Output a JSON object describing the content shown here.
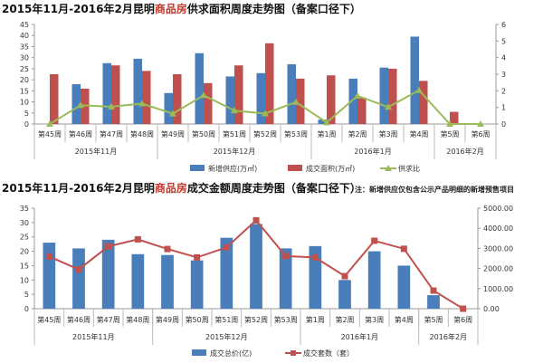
{
  "colors": {
    "supply": "#4a7ebb",
    "sales": "#c0504d",
    "ratio": "#9bbb59",
    "amount": "#4a7ebb",
    "units": "#c0504d",
    "highlight": "#c0392b"
  },
  "chart_data": [
    {
      "type": "bar+line",
      "title_parts": [
        "2015年11月-2016年2月昆明",
        "商品房",
        "供求面积周度走势图（备案口径下）"
      ],
      "categories": [
        "第45周",
        "第46周",
        "第47周",
        "第48周",
        "第49周",
        "第50周",
        "第51周",
        "第52周",
        "第53周",
        "第1周",
        "第2周",
        "第3周",
        "第4周",
        "第5周",
        "第6周"
      ],
      "groups": [
        {
          "label": "2015年11月",
          "count": 4
        },
        {
          "label": "2015年12月",
          "count": 5
        },
        {
          "label": "2016年1月",
          "count": 4
        },
        {
          "label": "2016年2月",
          "count": 2
        }
      ],
      "ylim": [
        0,
        45
      ],
      "yticks": [
        0,
        5,
        10,
        15,
        20,
        25,
        30,
        35,
        40,
        45
      ],
      "y2lim": [
        0,
        6
      ],
      "y2ticks": [
        0,
        1,
        2,
        3,
        4,
        5,
        6
      ],
      "series": [
        {
          "name": "新增供应(万㎡)",
          "kind": "bar",
          "axis": "left",
          "color_key": "supply",
          "values": [
            0,
            18,
            27.5,
            29.5,
            14,
            32,
            21.5,
            23,
            27,
            2,
            20.5,
            25.5,
            39.5,
            0,
            0
          ]
        },
        {
          "name": "成交面积(万㎡)",
          "kind": "bar",
          "axis": "left",
          "color_key": "sales",
          "values": [
            22.5,
            16,
            26.5,
            24,
            22.5,
            18.5,
            26.5,
            36.5,
            20.5,
            22,
            12,
            25,
            19.5,
            5.5,
            0
          ]
        },
        {
          "name": "供求比",
          "kind": "line",
          "marker": "triangle",
          "axis": "right",
          "color_key": "ratio",
          "values": [
            0,
            1.13,
            1.04,
            1.23,
            0.62,
            1.73,
            0.81,
            0.63,
            1.32,
            0.09,
            1.7,
            1.02,
            2.03,
            0,
            0
          ]
        }
      ],
      "legend": "bottom"
    },
    {
      "type": "bar+line",
      "title_parts": [
        "2015年11月-2016年2月昆明",
        "商品房",
        "成交金额周度走势图（备案口径下）"
      ],
      "note": "注：新增供应仅包含公示产品明细的新增预售项目",
      "categories": [
        "第45周",
        "第46周",
        "第47周",
        "第48周",
        "第49周",
        "第50周",
        "第51周",
        "第52周",
        "第53周",
        "第1周",
        "第2周",
        "第3周",
        "第4周",
        "第5周",
        "第6周"
      ],
      "groups": [
        {
          "label": "2015年11月",
          "count": 4
        },
        {
          "label": "2015年12月",
          "count": 5
        },
        {
          "label": "2016年1月",
          "count": 4
        },
        {
          "label": "2016年2月",
          "count": 2
        }
      ],
      "ylim": [
        0,
        35
      ],
      "yticks": [
        0,
        5,
        10,
        15,
        20,
        25,
        30,
        35
      ],
      "y2lim": [
        0,
        5000
      ],
      "y2ticks": [
        "0.00",
        "1000.00",
        "2000.00",
        "3000.00",
        "4000.00",
        "5000.00"
      ],
      "series": [
        {
          "name": "成交总价(亿)",
          "kind": "bar",
          "axis": "left",
          "color_key": "amount",
          "values": [
            23,
            21,
            24,
            19,
            18.7,
            16.8,
            24.7,
            29.5,
            21,
            21.8,
            10,
            20,
            15,
            4.7,
            0
          ]
        },
        {
          "name": "成交套数（套）",
          "kind": "line",
          "marker": "square",
          "axis": "right",
          "color_key": "units",
          "values": [
            2600,
            1950,
            3100,
            3450,
            2970,
            2550,
            3050,
            4400,
            2620,
            2550,
            1620,
            3380,
            2980,
            900,
            0
          ]
        }
      ],
      "legend": "bottom"
    }
  ]
}
